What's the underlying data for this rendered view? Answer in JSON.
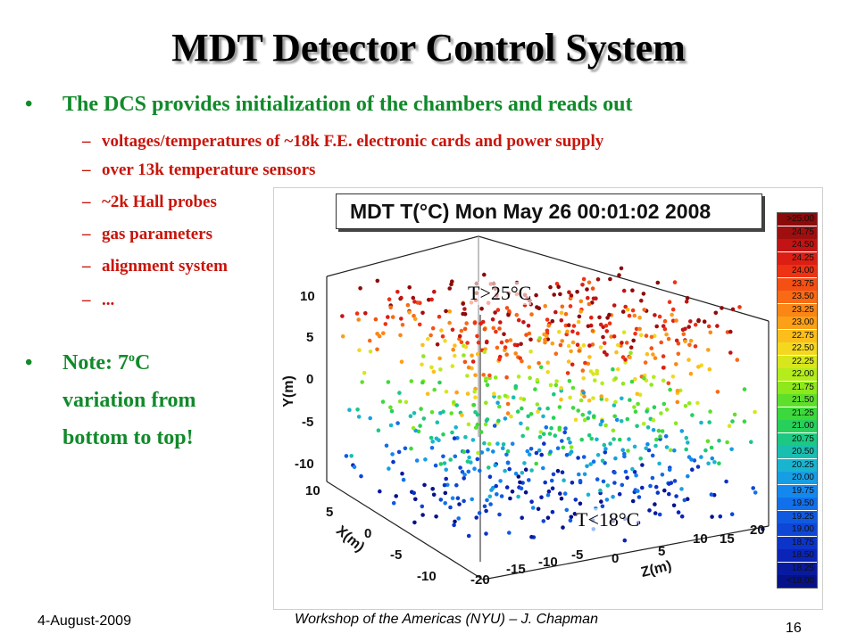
{
  "slide": {
    "title": "MDT Detector Control System",
    "bullet_main": "The DCS provides initialization of the chambers and reads out",
    "bullet_glyph": "•",
    "dash_glyph": "–",
    "sub_items": [
      "voltages/temperatures of ~18k F.E. electronic cards and power supply",
      "over 13k temperature sensors",
      "~2k Hall probes",
      "gas parameters",
      "alignment system",
      "..."
    ],
    "note": {
      "part1": "Note: 7",
      "sup": "o",
      "part2": "C",
      "line2": "variation from",
      "line3": "bottom to top!"
    }
  },
  "plot": {
    "title": "MDT T(°C) Mon May 26 00:01:02 2008",
    "annotation_top": "T>25°C",
    "annotation_bottom": "T<18°C",
    "y_axis_title": "Y(m)",
    "y_ticks": [
      "10",
      "5",
      "0",
      "-5",
      "-10"
    ],
    "x_axis_title": "X(m)",
    "x_ticks": [
      "10",
      "5",
      "0",
      "-5",
      "-10"
    ],
    "z_axis_title": "Z(m)",
    "z_ticks": [
      "-20",
      "-15",
      "-10",
      "-5",
      "0",
      "5",
      "10",
      "15",
      "20"
    ],
    "colorbar_labels": [
      "25.00",
      "24.75",
      "24.50",
      "24.25",
      "24.00",
      "23.75",
      "23.50",
      "23.25",
      "23.00",
      "22.75",
      "22.50",
      "22.25",
      "22.00",
      "21.75",
      "21.50",
      "21.25",
      "21.00",
      "20.75",
      "20.50",
      "20.25",
      "20.00",
      "19.75",
      "19.50",
      "19.25",
      "19.00",
      "18.75",
      "18.50",
      "18.25",
      "18.00"
    ],
    "colorbar_colors": [
      "#8b0a0a",
      "#a00f0f",
      "#c21414",
      "#dc1e14",
      "#ee3214",
      "#f45014",
      "#f86a14",
      "#fa8616",
      "#fca018",
      "#fcbe1c",
      "#f4d820",
      "#d8e61e",
      "#b4ec1c",
      "#8ee81c",
      "#5ee02a",
      "#3cd83c",
      "#26d05a",
      "#1cc882",
      "#1abeb0",
      "#18b4d0",
      "#169ee4",
      "#1488ee",
      "#1270ea",
      "#105ae2",
      "#0e46d6",
      "#0c34c8",
      "#0a24b8",
      "#081aa0",
      "#06128a"
    ]
  },
  "footer": {
    "date": "4-August-2009",
    "event": "Workshop of the Americas (NYU) – J. Chapman",
    "page": "16"
  }
}
